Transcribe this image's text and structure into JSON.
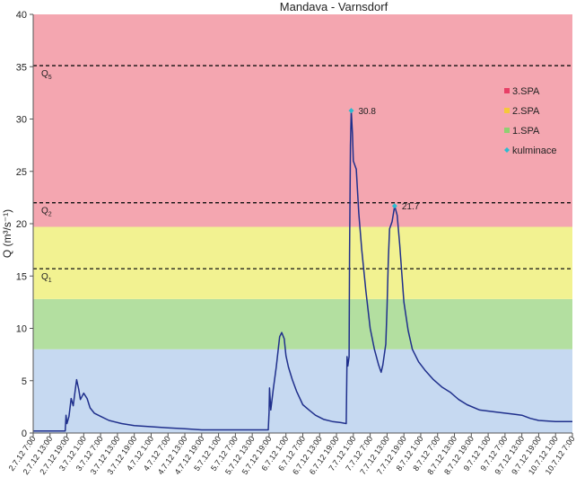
{
  "chart_data": {
    "type": "line",
    "title": "Mandava - Varnsdorf",
    "ylabel": "Q (m³/s⁻¹)",
    "xlabel": "",
    "ylim": [
      0,
      40
    ],
    "yticks": [
      0,
      5,
      10,
      15,
      20,
      25,
      30,
      35,
      40
    ],
    "x_tick_labels": [
      "2.7.12 7:00",
      "2.7.12 13:00",
      "2.7.12 19:00",
      "3.7.12 1:00",
      "3.7.12 7:00",
      "3.7.12 13:00",
      "3.7.12 19:00",
      "4.7.12 1:00",
      "4.7.12 7:00",
      "4.7.12 13:00",
      "4.7.12 19:00",
      "5.7.12 1:00",
      "5.7.12 7:00",
      "5.7.12 13:00",
      "5.7.12 19:00",
      "6.7.12 1:00",
      "6.7.12 7:00",
      "6.7.12 13:00",
      "6.7.12 19:00",
      "7.7.12 1:00",
      "7.7.12 7:00",
      "7.7.12 13:00",
      "7.7.12 19:00",
      "8.7.12 1:00",
      "8.7.12 7:00",
      "8.7.12 13:00",
      "8.7.12 19:00",
      "9.7.12 1:00",
      "9.7.12 7:00",
      "9.7.12 13:00",
      "9.7.12 19:00",
      "10.7.12 1:00",
      "10.7.12 7:00"
    ],
    "bands": [
      {
        "name": "background",
        "from": 0,
        "to": 8,
        "color": "#c6d9f1"
      },
      {
        "name": "1.SPA",
        "from": 8,
        "to": 12.8,
        "color": "#b3dfa0"
      },
      {
        "name": "2.SPA",
        "from": 12.8,
        "to": 19.7,
        "color": "#f2f291"
      },
      {
        "name": "3.SPA",
        "from": 19.7,
        "to": 40,
        "color": "#f4a6b0"
      }
    ],
    "thresholds": [
      {
        "label": "Q",
        "sub": "1",
        "value": 15.7
      },
      {
        "label": "Q",
        "sub": "2",
        "value": 22.0
      },
      {
        "label": "Q",
        "sub": "5",
        "value": 35.1
      }
    ],
    "series": [
      {
        "color": "#1f2f8c",
        "points": [
          [
            0,
            0.2
          ],
          [
            6,
            0.2
          ],
          [
            7.6,
            0.2
          ],
          [
            7.8,
            1.7
          ],
          [
            8,
            0.9
          ],
          [
            8.5,
            1.6
          ],
          [
            9,
            3.3
          ],
          [
            9.5,
            2.6
          ],
          [
            10,
            4.2
          ],
          [
            10.3,
            5.1
          ],
          [
            10.8,
            4.2
          ],
          [
            11.2,
            3.2
          ],
          [
            12,
            3.8
          ],
          [
            12.8,
            3.3
          ],
          [
            13.5,
            2.4
          ],
          [
            14.5,
            1.9
          ],
          [
            16,
            1.6
          ],
          [
            18,
            1.2
          ],
          [
            21,
            0.9
          ],
          [
            24,
            0.7
          ],
          [
            28,
            0.6
          ],
          [
            32,
            0.5
          ],
          [
            36,
            0.4
          ],
          [
            40,
            0.3
          ],
          [
            44,
            0.3
          ],
          [
            48,
            0.3
          ],
          [
            52,
            0.3
          ],
          [
            55.8,
            0.3
          ],
          [
            56,
            2.0
          ],
          [
            56.1,
            4.3
          ],
          [
            56.4,
            2.2
          ],
          [
            57,
            4.2
          ],
          [
            57.7,
            6.3
          ],
          [
            58.5,
            9.2
          ],
          [
            59,
            9.6
          ],
          [
            59.6,
            9.0
          ],
          [
            60,
            7.4
          ],
          [
            60.6,
            6.3
          ],
          [
            61.5,
            5.1
          ],
          [
            62.5,
            4.0
          ],
          [
            64,
            2.7
          ],
          [
            65.5,
            2.2
          ],
          [
            67,
            1.7
          ],
          [
            69,
            1.3
          ],
          [
            71,
            1.1
          ],
          [
            73,
            1.0
          ],
          [
            74.3,
            0.9
          ],
          [
            74.5,
            7.3
          ],
          [
            74.7,
            6.4
          ],
          [
            75,
            7.3
          ],
          [
            75.1,
            17.0
          ],
          [
            75.3,
            27.5
          ],
          [
            75.5,
            30.8
          ],
          [
            75.8,
            28.5
          ],
          [
            76,
            26.0
          ],
          [
            76.7,
            25.2
          ],
          [
            77.3,
            21.0
          ],
          [
            78,
            17.5
          ],
          [
            79,
            13.5
          ],
          [
            80,
            10.0
          ],
          [
            81,
            8.0
          ],
          [
            82,
            6.5
          ],
          [
            82.6,
            5.8
          ],
          [
            83,
            6.5
          ],
          [
            83.7,
            8.5
          ],
          [
            84,
            12.0
          ],
          [
            84.3,
            16.5
          ],
          [
            84.6,
            19.5
          ],
          [
            85.2,
            20.2
          ],
          [
            85.8,
            21.7
          ],
          [
            86.4,
            20.8
          ],
          [
            87,
            18.0
          ],
          [
            88,
            12.5
          ],
          [
            89,
            9.8
          ],
          [
            90,
            8.0
          ],
          [
            91.5,
            6.8
          ],
          [
            93,
            6.0
          ],
          [
            95,
            5.1
          ],
          [
            97,
            4.4
          ],
          [
            99,
            3.9
          ],
          [
            101,
            3.2
          ],
          [
            103,
            2.7
          ],
          [
            106,
            2.2
          ],
          [
            110,
            2.0
          ],
          [
            114,
            1.8
          ],
          [
            116,
            1.7
          ],
          [
            118,
            1.4
          ],
          [
            120,
            1.2
          ],
          [
            124,
            1.1
          ],
          [
            128,
            1.1
          ]
        ]
      }
    ],
    "peaks": [
      {
        "x": 75.5,
        "y": 30.8,
        "label": "30.8"
      },
      {
        "x": 85.8,
        "y": 21.7,
        "label": "21.7"
      }
    ],
    "legend": {
      "placement": "right",
      "entries": [
        {
          "label": "3.SPA",
          "color": "#e83f66",
          "marker": "square"
        },
        {
          "label": "2.SPA",
          "color": "#f5c83a",
          "marker": "square"
        },
        {
          "label": "1.SPA",
          "color": "#8fcf72",
          "marker": "square"
        },
        {
          "label": "kulminace",
          "color": "#2bbbd0",
          "marker": "diamond"
        }
      ]
    },
    "grid": false
  }
}
